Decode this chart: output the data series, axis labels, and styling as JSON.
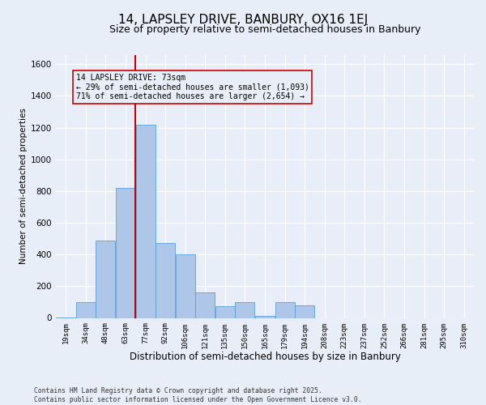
{
  "title1": "14, LAPSLEY DRIVE, BANBURY, OX16 1EJ",
  "title2": "Size of property relative to semi-detached houses in Banbury",
  "xlabel": "Distribution of semi-detached houses by size in Banbury",
  "ylabel": "Number of semi-detached properties",
  "annotation_title": "14 LAPSLEY DRIVE: 73sqm",
  "annotation_line1": "← 29% of semi-detached houses are smaller (1,093)",
  "annotation_line2": "71% of semi-detached houses are larger (2,654) →",
  "footer1": "Contains HM Land Registry data © Crown copyright and database right 2025.",
  "footer2": "Contains public sector information licensed under the Open Government Licence v3.0.",
  "bin_labels": [
    "19sqm",
    "34sqm",
    "48sqm",
    "63sqm",
    "77sqm",
    "92sqm",
    "106sqm",
    "121sqm",
    "135sqm",
    "150sqm",
    "165sqm",
    "179sqm",
    "194sqm",
    "208sqm",
    "223sqm",
    "237sqm",
    "252sqm",
    "266sqm",
    "281sqm",
    "295sqm",
    "310sqm"
  ],
  "bar_heights": [
    5,
    100,
    490,
    820,
    1220,
    470,
    400,
    160,
    75,
    100,
    15,
    100,
    80,
    0,
    0,
    0,
    0,
    0,
    0,
    0,
    0
  ],
  "bar_color": "#aec6e8",
  "bar_edge_color": "#5a9fd4",
  "vline_color": "#cc0000",
  "vline_pos": 3.5,
  "ylim": [
    0,
    1660
  ],
  "yticks": [
    0,
    200,
    400,
    600,
    800,
    1000,
    1200,
    1400,
    1600
  ],
  "bg_color": "#e8eef8",
  "grid_color": "#ffffff",
  "title1_fontsize": 11,
  "title2_fontsize": 9,
  "ylabel_fontsize": 7.5,
  "xlabel_fontsize": 8.5
}
